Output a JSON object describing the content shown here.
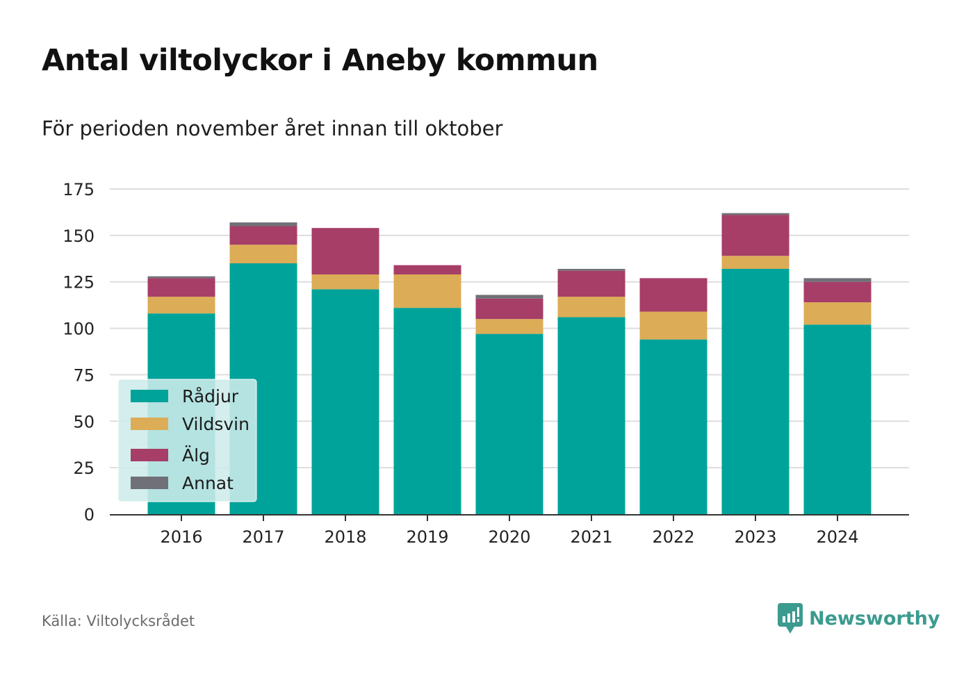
{
  "title": "Antal viltolyckor i Aneby kommun",
  "subtitle": "För perioden november året innan till oktober",
  "source": "Källa: Viltolycksrådet",
  "brand": {
    "name": "Newsworthy",
    "icon": "newsworthy-logo-icon",
    "color": "#3c9b8f"
  },
  "colors": {
    "Rådjur": "#00a39a",
    "Vildsvin": "#dcac57",
    "Älg": "#a63e68",
    "Annat": "#707078",
    "grid": "#dddddd",
    "axis": "#333333",
    "legend_bg": "#cdecea"
  },
  "chart_data": {
    "type": "bar",
    "stacked": true,
    "categories": [
      "2016",
      "2017",
      "2018",
      "2019",
      "2020",
      "2021",
      "2022",
      "2023",
      "2024"
    ],
    "series": [
      {
        "name": "Rådjur",
        "values": [
          108,
          135,
          121,
          111,
          97,
          106,
          94,
          132,
          102
        ]
      },
      {
        "name": "Vildsvin",
        "values": [
          9,
          10,
          8,
          18,
          8,
          11,
          15,
          7,
          12
        ]
      },
      {
        "name": "Älg",
        "values": [
          10,
          10,
          25,
          5,
          11,
          14,
          18,
          22,
          11
        ]
      },
      {
        "name": "Annat",
        "values": [
          1,
          2,
          0,
          0,
          2,
          1,
          0,
          1,
          2
        ]
      }
    ],
    "yticks": [
      0,
      25,
      50,
      75,
      100,
      125,
      150,
      175
    ],
    "ylim": [
      0,
      175
    ],
    "xlabel": "",
    "ylabel": "",
    "grid": true,
    "legend_position": "bottom-left"
  }
}
